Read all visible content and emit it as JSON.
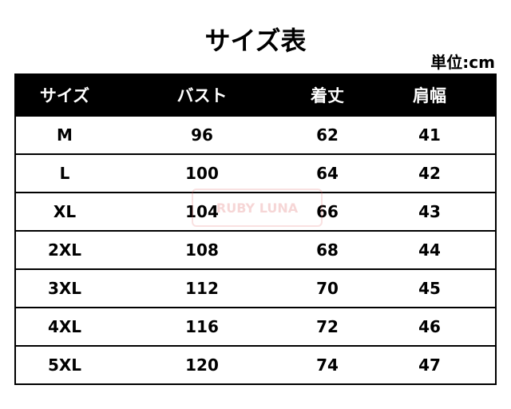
{
  "title": "サイズ表",
  "unit": "単位:cm",
  "watermark": "RUBY LUNA",
  "headers": [
    "サイズ",
    "バスト",
    "着丈",
    "肩幅"
  ],
  "rows": [
    [
      "M",
      "96",
      "62",
      "41"
    ],
    [
      "L",
      "100",
      "64",
      "42"
    ],
    [
      "XL",
      "104",
      "66",
      "43"
    ],
    [
      "2XL",
      "108",
      "68",
      "44"
    ],
    [
      "3XL",
      "112",
      "70",
      "45"
    ],
    [
      "4XL",
      "116",
      "72",
      "46"
    ],
    [
      "5XL",
      "120",
      "74",
      "47"
    ]
  ]
}
